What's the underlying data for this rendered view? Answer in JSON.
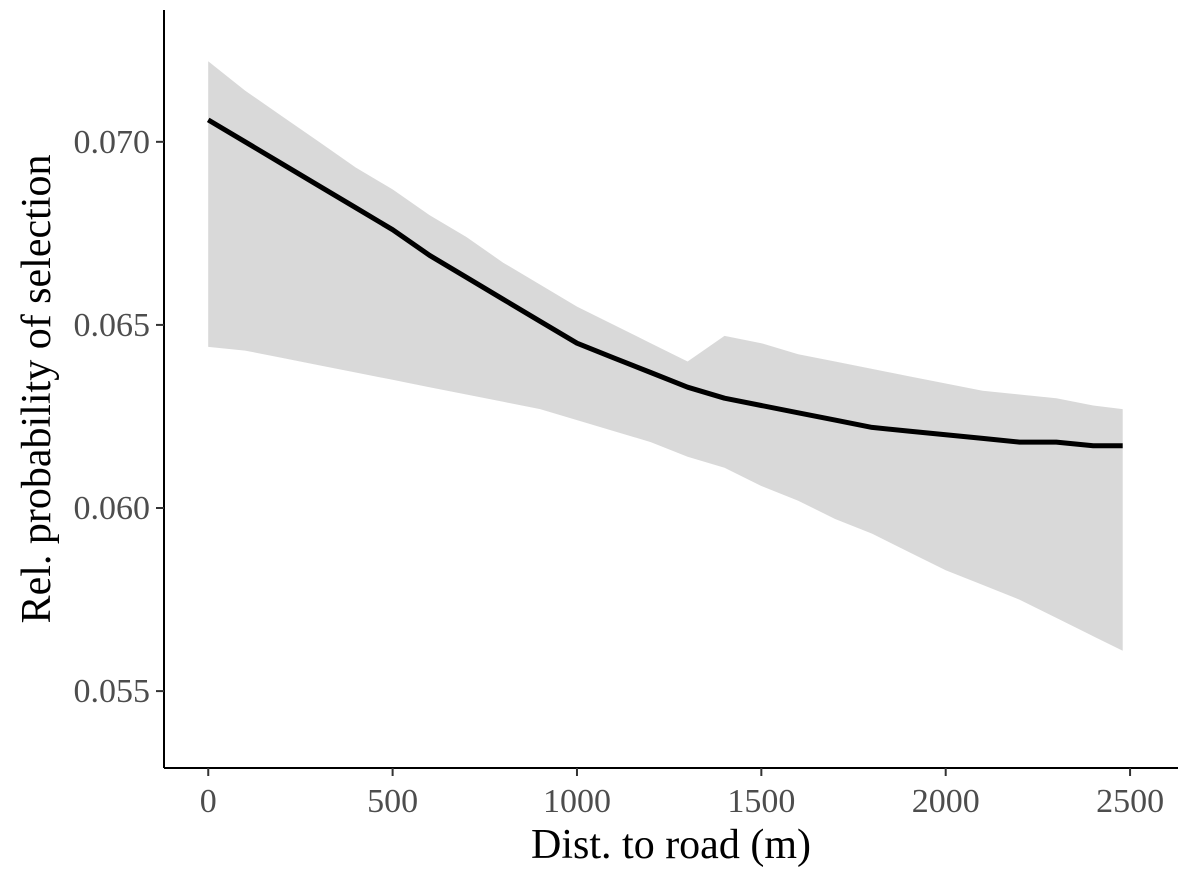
{
  "chart_data": {
    "type": "line",
    "title": "",
    "xlabel": "Dist. to road (m)",
    "ylabel": "Rel. probability of selection",
    "xlim": [
      -120,
      2630
    ],
    "ylim": [
      0.0529,
      0.0736
    ],
    "xticks": [
      0,
      500,
      1000,
      1500,
      2000,
      2500
    ],
    "xtick_labels": [
      "0",
      "500",
      "1000",
      "1500",
      "2000",
      "2500"
    ],
    "yticks": [
      0.055,
      0.06,
      0.065,
      0.07
    ],
    "ytick_labels": [
      "0.055",
      "0.060",
      "0.065",
      "0.070"
    ],
    "grid": false,
    "legend": "none",
    "series": [
      {
        "x": [
          0,
          100,
          200,
          300,
          400,
          500,
          600,
          700,
          800,
          900,
          1000,
          1100,
          1200,
          1300,
          1400,
          1500,
          1600,
          1700,
          1800,
          1900,
          2000,
          2100,
          2200,
          2300,
          2400,
          2480
        ],
        "y": [
          0.0706,
          0.07,
          0.0694,
          0.0688,
          0.0682,
          0.0676,
          0.0669,
          0.0663,
          0.0657,
          0.0651,
          0.0645,
          0.0641,
          0.0637,
          0.0633,
          0.063,
          0.0628,
          0.0626,
          0.0624,
          0.0622,
          0.0621,
          0.062,
          0.0619,
          0.0618,
          0.0618,
          0.0617,
          0.0617
        ],
        "lower": [
          0.0644,
          0.0643,
          0.0641,
          0.0639,
          0.0637,
          0.0635,
          0.0633,
          0.0631,
          0.0629,
          0.0627,
          0.0624,
          0.0621,
          0.0618,
          0.0614,
          0.0611,
          0.0606,
          0.0602,
          0.0597,
          0.0593,
          0.0588,
          0.0583,
          0.0579,
          0.0575,
          0.057,
          0.0565,
          0.0561
        ],
        "upper": [
          0.0722,
          0.0714,
          0.0707,
          0.07,
          0.0693,
          0.0687,
          0.068,
          0.0674,
          0.0667,
          0.0661,
          0.0655,
          0.065,
          0.0645,
          0.064,
          0.0647,
          0.0645,
          0.0642,
          0.064,
          0.0638,
          0.0636,
          0.0634,
          0.0632,
          0.0631,
          0.063,
          0.0628,
          0.0627
        ]
      }
    ],
    "colors": {
      "line": "#000000",
      "ribbon": "#d9d9d9",
      "axis": "#000000",
      "tick_text": "#4d4d4d"
    }
  }
}
